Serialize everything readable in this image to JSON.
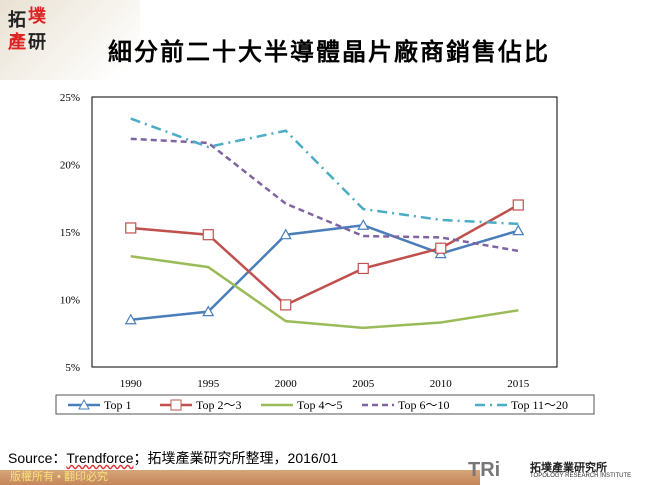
{
  "title": "細分前二十大半導體晶片廠商銷售佔比",
  "logo_text": [
    "拓",
    "墣",
    "產",
    "研"
  ],
  "source": {
    "prefix": "Source：",
    "link": "Trendforce",
    "suffix": "；拓墣產業研究所整理，2016/01"
  },
  "footer": "版權所有 • 翻印必究",
  "brand": {
    "mark": "TRi",
    "name": "拓墣產業研究所",
    "en": "TOPOLOGY RESEARCH INSTITUTE"
  },
  "chart_data": {
    "type": "line",
    "categories": [
      "1990",
      "1995",
      "2000",
      "2005",
      "2010",
      "2015"
    ],
    "ylim": [
      5,
      25
    ],
    "yticks": [
      "5%",
      "10%",
      "15%",
      "20%",
      "25%"
    ],
    "grid": false,
    "legend": "bottom",
    "series": [
      {
        "name": "Top 1",
        "color": "#4a7ebb",
        "style": "solid",
        "marker": "triangle",
        "values": [
          8.5,
          9.1,
          14.8,
          15.5,
          13.4,
          15.1
        ]
      },
      {
        "name": "Top 2～3",
        "color": "#c0504d",
        "style": "solid",
        "marker": "square",
        "values": [
          15.3,
          14.8,
          9.6,
          12.3,
          13.8,
          17.0
        ]
      },
      {
        "name": "Top 4～5",
        "color": "#9bbb59",
        "style": "solid",
        "marker": "none",
        "values": [
          13.2,
          12.4,
          8.4,
          7.9,
          8.3,
          9.2
        ]
      },
      {
        "name": "Top 6～10",
        "color": "#8064a2",
        "style": "dash",
        "marker": "none",
        "values": [
          21.9,
          21.6,
          17.1,
          14.7,
          14.6,
          13.6
        ]
      },
      {
        "name": "Top 11～20",
        "color": "#4bacc6",
        "style": "dashdot",
        "marker": "none",
        "values": [
          23.4,
          21.3,
          22.5,
          16.7,
          15.9,
          15.6
        ]
      }
    ]
  }
}
